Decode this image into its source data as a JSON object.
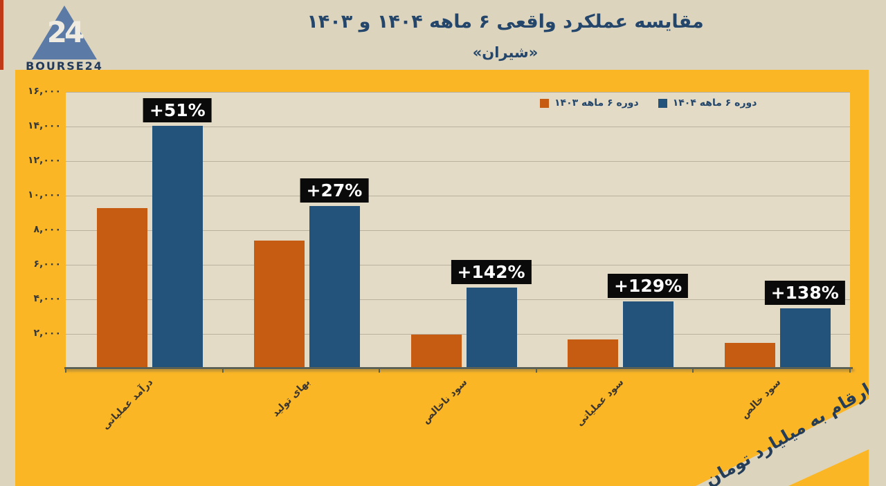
{
  "brand": {
    "name": "BOURSE24",
    "logo_number": "24"
  },
  "header": {
    "title": "مقایسه عملکرد واقعی ۶ ماهه ۱۴۰۴ و ۱۴۰۳",
    "subtitle": "«شیران»"
  },
  "chart_data": {
    "type": "bar",
    "title": "مقایسه عملکرد واقعی ۶ ماهه ۱۴۰۴ و ۱۴۰۳",
    "subtitle": "«شیران»",
    "categories": [
      "درآمد عملیاتی",
      "بهای تولید",
      "سود ناخالص",
      "سود عملیاتی",
      "سود خالص"
    ],
    "series": [
      {
        "name": "دوره ۶ ماهه ۱۴۰۳",
        "color": "#c65c11",
        "values": [
          9300,
          7400,
          1950,
          1700,
          1470
        ]
      },
      {
        "name": "دوره ۶ ماهه ۱۴۰۴",
        "color": "#23527b",
        "values": [
          14050,
          9400,
          4700,
          3900,
          3500
        ]
      }
    ],
    "growth_labels": [
      "+51%",
      "+27%",
      "+142%",
      "+129%",
      "+138%"
    ],
    "y_ticks": [
      {
        "value": 2000,
        "label": "۲,۰۰۰"
      },
      {
        "value": 4000,
        "label": "۴,۰۰۰"
      },
      {
        "value": 6000,
        "label": "۶,۰۰۰"
      },
      {
        "value": 8000,
        "label": "۸,۰۰۰"
      },
      {
        "value": 10000,
        "label": "۱۰,۰۰۰"
      },
      {
        "value": 12000,
        "label": "۱۲,۰۰۰"
      },
      {
        "value": 14000,
        "label": "۱۴,۰۰۰"
      },
      {
        "value": 16000,
        "label": "۱۶,۰۰۰"
      }
    ],
    "ylim": [
      0,
      16000
    ],
    "grid": true,
    "legend_position": "top-right-inside",
    "unit_note": "ارقام به میلیارد تومان"
  },
  "colors": {
    "panel_yellow": "#fbb625",
    "page_beige": "#ddd4be",
    "plot_beige": "#e3dbc6",
    "bar_1403": "#c65c11",
    "bar_1404": "#23527b",
    "navy_text": "#24466b",
    "accent_red": "#c13a18",
    "growth_label_bg": "#0a0a0a"
  }
}
